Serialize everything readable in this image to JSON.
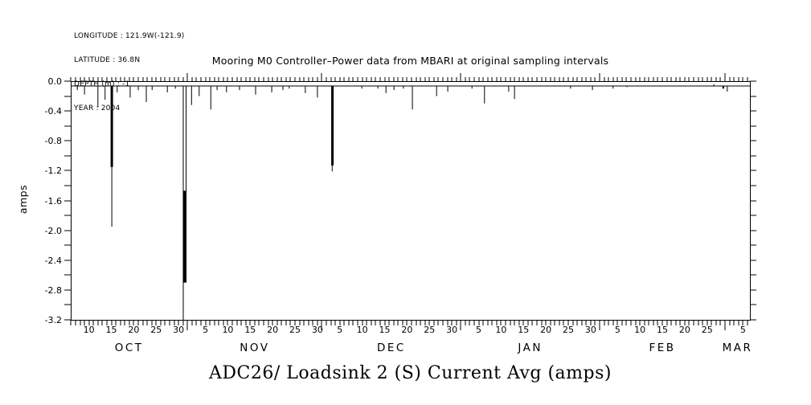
{
  "info": {
    "longitude": "LONGITUDE : 121.9W(-121.9)",
    "latitude": "LATITUDE : 36.8N",
    "depth": "DEPTH (m) : -1",
    "year": "YEAR : 2004"
  },
  "colors": {
    "foreground": "#000000",
    "background": "#ffffff"
  },
  "chart_data": {
    "type": "line",
    "title": "Mooring M0 Controller–Power data from MBARI at original sampling intervals",
    "bottom_title": "ADC26/ Loadsink 2 (S) Current Avg (amps)",
    "ylabel": "amps",
    "ylim": [
      -3.2,
      0.0
    ],
    "y_major_tick_step": 0.4,
    "y_minor_tick_step": 0.2,
    "y_tick_labels": [
      "0.0",
      "-0.4",
      "-0.8",
      "-1.2",
      "-1.6",
      "-2.0",
      "-2.4",
      "-2.8",
      "-3.2"
    ],
    "grid": false,
    "x_axis": {
      "unit": "days since Oct 1 2004",
      "range_days": [
        4.93,
        156.55
      ],
      "day_label_values": [
        5,
        10,
        15,
        20,
        25,
        30
      ],
      "months": [
        {
          "label": "OCT",
          "start_day": 0,
          "days": 31
        },
        {
          "label": "NOV",
          "start_day": 31,
          "days": 30
        },
        {
          "label": "DEC",
          "start_day": 61,
          "days": 31
        },
        {
          "label": "JAN",
          "start_day": 92,
          "days": 31
        },
        {
          "label": "FEB",
          "start_day": 123,
          "days": 28
        },
        {
          "label": "MAR",
          "start_day": 151,
          "days": 31
        }
      ]
    },
    "baseline_amps": -0.07,
    "spikes": [
      {
        "day": 6.4,
        "amps": -0.12
      },
      {
        "day": 8.0,
        "amps": -0.18
      },
      {
        "day": 11.0,
        "amps": -0.35
      },
      {
        "day": 12.6,
        "amps": -0.25
      },
      {
        "day": 14.1,
        "amps": -1.95
      },
      {
        "day": 15.3,
        "amps": -0.15
      },
      {
        "day": 18.2,
        "amps": -0.22
      },
      {
        "day": 20.0,
        "amps": -0.12
      },
      {
        "day": 21.8,
        "amps": -0.28
      },
      {
        "day": 23.1,
        "amps": -0.12
      },
      {
        "day": 26.5,
        "amps": -0.15
      },
      {
        "day": 28.3,
        "amps": -0.1
      },
      {
        "day": 30.05,
        "amps": -3.2
      },
      {
        "day": 30.68,
        "amps": -2.7
      },
      {
        "day": 31.9,
        "amps": -0.32
      },
      {
        "day": 33.6,
        "amps": -0.2
      },
      {
        "day": 36.2,
        "amps": -0.38
      },
      {
        "day": 37.6,
        "amps": -0.12
      },
      {
        "day": 39.7,
        "amps": -0.15
      },
      {
        "day": 42.6,
        "amps": -0.12
      },
      {
        "day": 46.2,
        "amps": -0.18
      },
      {
        "day": 49.8,
        "amps": -0.15
      },
      {
        "day": 52.3,
        "amps": -0.12
      },
      {
        "day": 53.7,
        "amps": -0.1
      },
      {
        "day": 57.3,
        "amps": -0.16
      },
      {
        "day": 60.0,
        "amps": -0.22
      },
      {
        "day": 63.3,
        "amps": -1.21
      },
      {
        "day": 69.9,
        "amps": -0.1
      },
      {
        "day": 73.5,
        "amps": -0.1
      },
      {
        "day": 75.3,
        "amps": -0.16
      },
      {
        "day": 77.1,
        "amps": -0.12
      },
      {
        "day": 79.2,
        "amps": -0.1
      },
      {
        "day": 81.2,
        "amps": -0.38
      },
      {
        "day": 86.6,
        "amps": -0.2
      },
      {
        "day": 89.1,
        "amps": -0.14
      },
      {
        "day": 94.5,
        "amps": -0.1
      },
      {
        "day": 97.3,
        "amps": -0.3
      },
      {
        "day": 102.7,
        "amps": -0.14
      },
      {
        "day": 104.0,
        "amps": -0.24
      },
      {
        "day": 116.5,
        "amps": -0.1
      },
      {
        "day": 121.4,
        "amps": -0.12
      },
      {
        "day": 126.0,
        "amps": -0.1
      },
      {
        "day": 129.1,
        "amps": -0.08
      },
      {
        "day": 148.5,
        "amps": -0.04
      },
      {
        "day": 150.6,
        "amps": -0.1,
        "w": 2
      },
      {
        "day": 151.5,
        "amps": -0.14
      }
    ],
    "thick_segments": [
      {
        "day": 14.1,
        "v0": -0.07,
        "v1": -1.15,
        "w": 3
      },
      {
        "day": 30.37,
        "v0": -1.47,
        "v1": -2.7,
        "w": 4.5
      },
      {
        "day": 63.35,
        "v0": -0.07,
        "v1": -1.13,
        "w": 3
      }
    ]
  }
}
